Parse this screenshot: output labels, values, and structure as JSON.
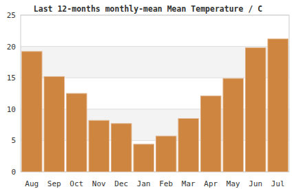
{
  "chart_data": {
    "type": "bar",
    "title": "Last 12-months monthly-mean Mean Temperature / C",
    "categories": [
      "Aug",
      "Sep",
      "Oct",
      "Nov",
      "Dec",
      "Jan",
      "Feb",
      "Mar",
      "Apr",
      "May",
      "Jun",
      "Jul"
    ],
    "values": [
      19.2,
      15.2,
      12.5,
      8.2,
      7.7,
      4.4,
      5.7,
      8.5,
      12.1,
      14.9,
      19.8,
      21.2
    ],
    "color": "#cd853f",
    "ylim": [
      0,
      25
    ],
    "yticks": [
      0,
      5,
      10,
      15,
      20,
      25
    ],
    "grid": true
  }
}
